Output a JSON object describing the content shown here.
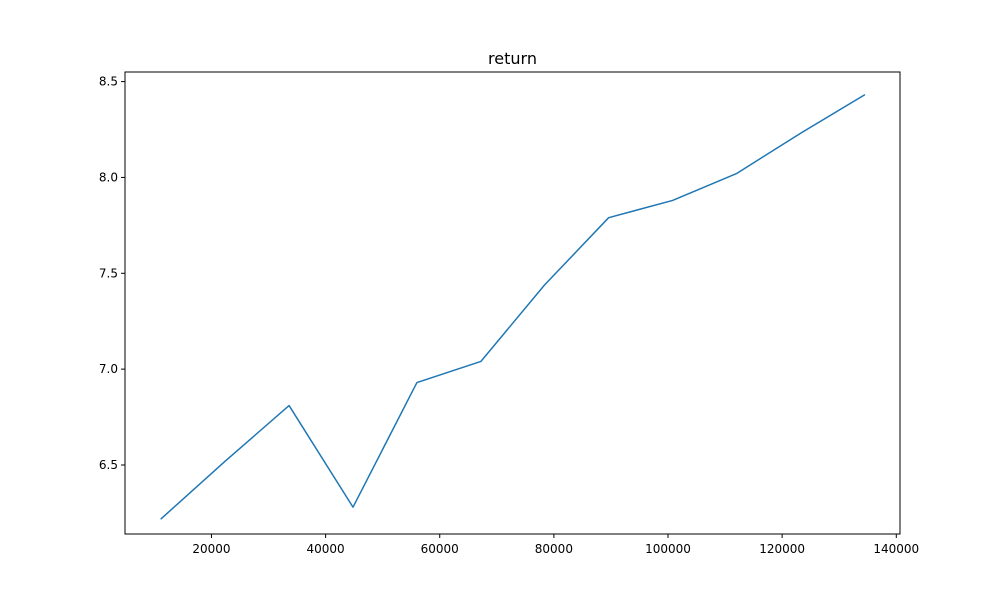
{
  "chart_data": {
    "type": "line",
    "title": "return",
    "xlabel": "",
    "ylabel": "",
    "xlim": [
      4850,
      140650
    ],
    "ylim": [
      6.14,
      8.55
    ],
    "xticks": [
      20000,
      40000,
      60000,
      80000,
      100000,
      120000,
      140000
    ],
    "xtick_labels": [
      "20000",
      "40000",
      "60000",
      "80000",
      "100000",
      "120000",
      "140000"
    ],
    "yticks": [
      6.5,
      7.0,
      7.5,
      8.0,
      8.5
    ],
    "ytick_labels": [
      "6.5",
      "7.0",
      "7.5",
      "8.0",
      "8.5"
    ],
    "grid": false,
    "legend": false,
    "series": [
      {
        "color": "#1f77b4",
        "x": [
          11200,
          22400,
          33600,
          44800,
          56000,
          67200,
          78400,
          89600,
          100800,
          112000,
          123200,
          134400
        ],
        "y": [
          6.22,
          6.52,
          6.81,
          6.28,
          6.93,
          7.04,
          7.44,
          7.79,
          7.88,
          8.02,
          8.23,
          8.43
        ]
      }
    ]
  }
}
